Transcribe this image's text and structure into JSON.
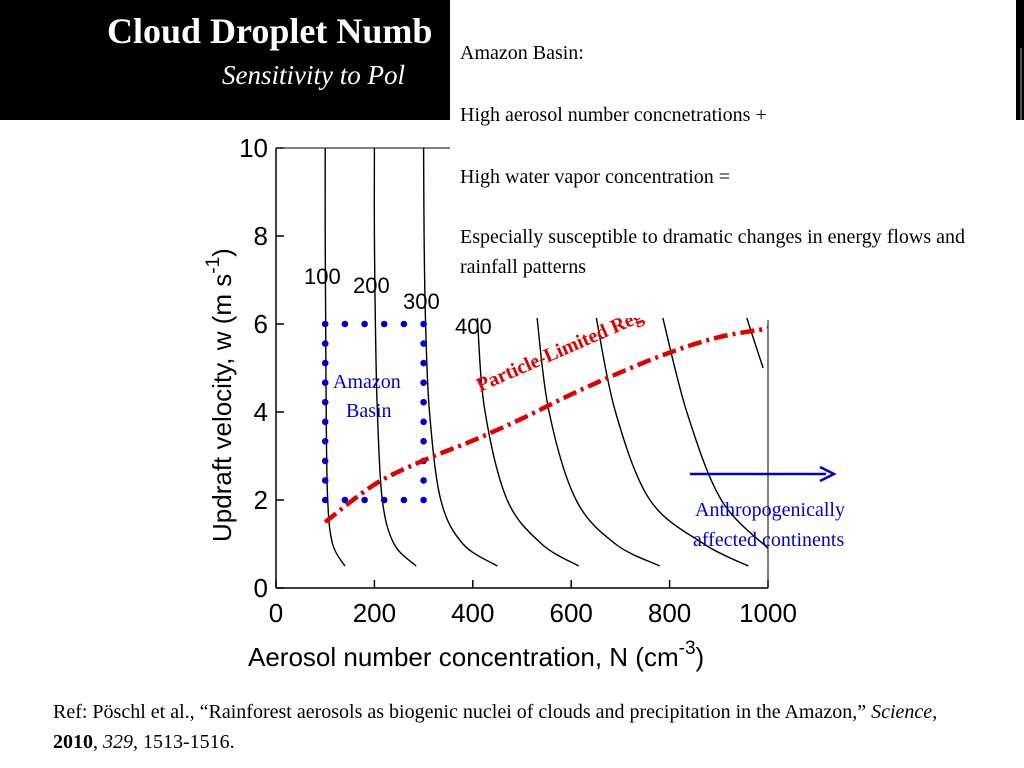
{
  "slide": {
    "title": "Cloud Droplet Numb",
    "subtitle": "Sensitivity to Pol"
  },
  "note": {
    "line1": "Amazon Basin:",
    "line2": "High aerosol number concnetrations +",
    "line3": "High water vapor concentration =",
    "line4": "Especially susceptible to dramatic changes in energy flows and rainfall patterns"
  },
  "reference": {
    "prefix": "Ref: Pöschl et al., “Rainforest aerosols as biogenic nuclei of clouds and precipitation in the Amazon,” ",
    "journal": "Science",
    "sep1": ", ",
    "year": "2010",
    "sep2": ", ",
    "volume": "329",
    "pages": ", 1513-1516."
  },
  "chart_data": {
    "type": "line",
    "xlabel": "Aerosol number concentration, N (cm",
    "xlabel_sup": "-3",
    "xlabel_end": ")",
    "ylabel": "Updraft velocity, w (m s",
    "ylabel_sup": "-1",
    "ylabel_end": ")",
    "xlim": [
      0,
      1000
    ],
    "ylim": [
      0,
      10
    ],
    "x_ticks": [
      "0",
      "200",
      "400",
      "600",
      "800",
      "1000"
    ],
    "y_ticks": [
      "0",
      "2",
      "4",
      "6",
      "8",
      "10"
    ],
    "contour_labels": [
      "100",
      "200",
      "300",
      "400"
    ],
    "contours": [
      {
        "points": [
          [
            100,
            10
          ],
          [
            100,
            8
          ],
          [
            101,
            6
          ],
          [
            102,
            4
          ],
          [
            105,
            2
          ],
          [
            115,
            1
          ],
          [
            140,
            0.5
          ]
        ]
      },
      {
        "points": [
          [
            200,
            10
          ],
          [
            200,
            8
          ],
          [
            202,
            6
          ],
          [
            206,
            4
          ],
          [
            216,
            2
          ],
          [
            240,
            1
          ],
          [
            285,
            0.5
          ]
        ]
      },
      {
        "points": [
          [
            300,
            10
          ],
          [
            301,
            8
          ],
          [
            304,
            6
          ],
          [
            312,
            4
          ],
          [
            335,
            2
          ],
          [
            380,
            1
          ],
          [
            450,
            0.5
          ]
        ]
      },
      {
        "points": [
          [
            405,
            7.5
          ],
          [
            410,
            6
          ],
          [
            425,
            4
          ],
          [
            470,
            2
          ],
          [
            540,
            1
          ],
          [
            615,
            0.5
          ]
        ]
      },
      {
        "points": [
          [
            530,
            6.2
          ],
          [
            555,
            4
          ],
          [
            610,
            2
          ],
          [
            690,
            1
          ],
          [
            780,
            0.5
          ]
        ]
      },
      {
        "points": [
          [
            650,
            6.2
          ],
          [
            690,
            4
          ],
          [
            760,
            2
          ],
          [
            870,
            1
          ],
          [
            960,
            0.5
          ]
        ]
      },
      {
        "points": [
          [
            785,
            6.2
          ],
          [
            835,
            4
          ],
          [
            905,
            2
          ],
          [
            1000,
            0.9
          ]
        ]
      },
      {
        "points": [
          [
            955,
            6.2
          ],
          [
            990,
            5
          ]
        ]
      }
    ],
    "regime_line": {
      "label": "Particle-Limited Reg",
      "points": [
        [
          100,
          1.5
        ],
        [
          200,
          2.35
        ],
        [
          300,
          2.9
        ],
        [
          400,
          3.35
        ],
        [
          500,
          3.85
        ],
        [
          600,
          4.4
        ],
        [
          700,
          4.9
        ],
        [
          800,
          5.35
        ],
        [
          900,
          5.7
        ],
        [
          1000,
          5.9
        ]
      ]
    },
    "amazon_box": {
      "label_line1": "Amazon",
      "label_line2": "Basin",
      "x": [
        100,
        300
      ],
      "y": [
        2,
        6
      ]
    },
    "arrow_label_line1": "Anthropogenically",
    "arrow_label_line2": "affected continents",
    "colors": {
      "contour": "#000000",
      "regime": "#dd0000",
      "amazon": "#0000cc",
      "arrow": "#0000cc"
    }
  }
}
